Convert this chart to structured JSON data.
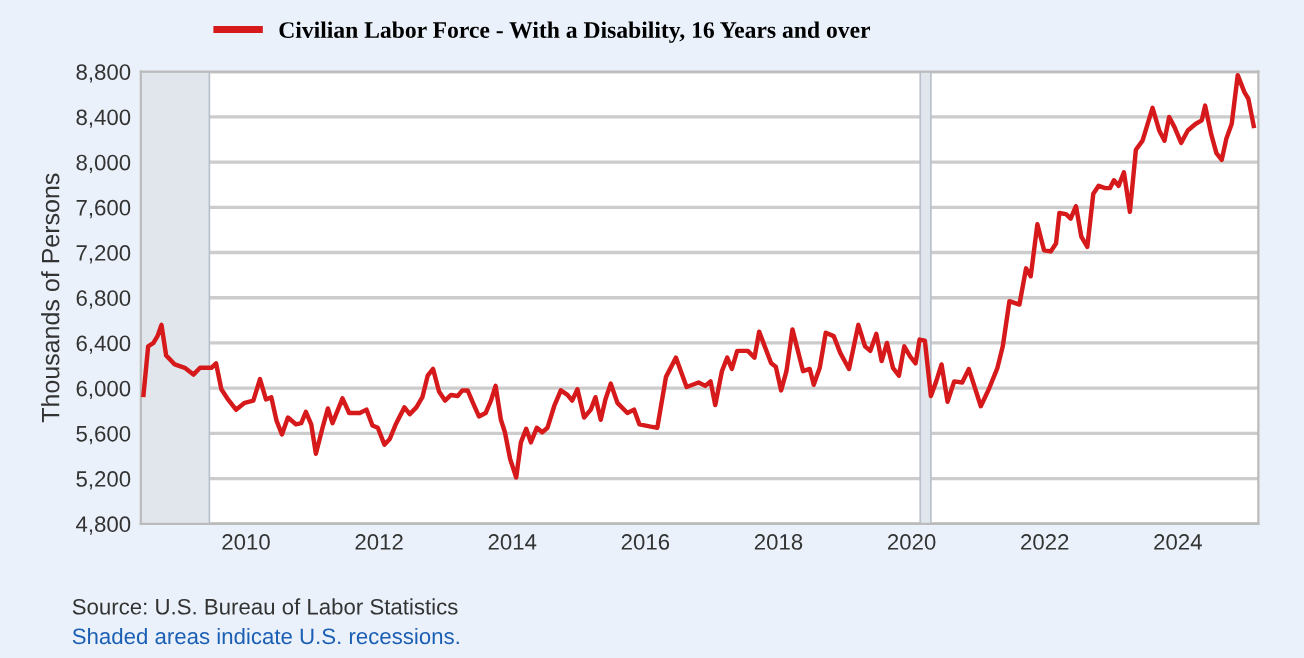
{
  "chart_data": {
    "type": "line",
    "ylabel": "Thousands of Persons",
    "x": [
      2008.46,
      2008.53,
      2008.61,
      2008.67,
      2008.73,
      2008.8,
      2008.93,
      2009.08,
      2009.21,
      2009.31,
      2009.43,
      2009.48,
      2009.55,
      2009.63,
      2009.73,
      2009.85,
      2009.98,
      2010.11,
      2010.21,
      2010.3,
      2010.38,
      2010.46,
      2010.54,
      2010.63,
      2010.75,
      2010.83,
      2010.9,
      2010.98,
      2011.05,
      2011.15,
      2011.23,
      2011.3,
      2011.45,
      2011.55,
      2011.71,
      2011.81,
      2011.9,
      2011.98,
      2012.08,
      2012.16,
      2012.25,
      2012.38,
      2012.46,
      2012.56,
      2012.65,
      2012.73,
      2012.81,
      2012.9,
      2012.99,
      2013.08,
      2013.18,
      2013.25,
      2013.33,
      2013.41,
      2013.5,
      2013.6,
      2013.68,
      2013.75,
      2013.83,
      2013.89,
      2013.97,
      2014.06,
      2014.13,
      2014.21,
      2014.28,
      2014.37,
      2014.45,
      2014.53,
      2014.63,
      2014.73,
      2014.83,
      2014.9,
      2014.98,
      2015.08,
      2015.18,
      2015.25,
      2015.33,
      2015.4,
      2015.48,
      2015.58,
      2015.73,
      2015.83,
      2015.91,
      2016.08,
      2016.18,
      2016.31,
      2016.46,
      2016.62,
      2016.8,
      2016.9,
      2016.98,
      2017.05,
      2017.15,
      2017.23,
      2017.3,
      2017.38,
      2017.54,
      2017.64,
      2017.71,
      2017.89,
      2017.96,
      2018.04,
      2018.12,
      2018.21,
      2018.37,
      2018.47,
      2018.53,
      2018.62,
      2018.71,
      2018.83,
      2018.93,
      2019.06,
      2019.2,
      2019.3,
      2019.38,
      2019.47,
      2019.55,
      2019.63,
      2019.72,
      2019.81,
      2019.89,
      2019.98,
      2020.06,
      2020.12,
      2020.2,
      2020.29,
      2020.37,
      2020.45,
      2020.54,
      2020.64,
      2020.76,
      2020.86,
      2021.04,
      2021.16,
      2021.29,
      2021.37,
      2021.47,
      2021.62,
      2021.72,
      2021.79,
      2021.89,
      2021.99,
      2022.09,
      2022.17,
      2022.22,
      2022.32,
      2022.39,
      2022.47,
      2022.55,
      2022.64,
      2022.73,
      2022.81,
      2022.91,
      2022.98,
      2023.04,
      2023.11,
      2023.19,
      2023.28,
      2023.37,
      2023.47,
      2023.62,
      2023.72,
      2023.8,
      2023.87,
      2023.95,
      2024.05,
      2024.15,
      2024.27,
      2024.36,
      2024.41,
      2024.5,
      2024.58,
      2024.66,
      2024.73,
      2024.81,
      2024.9,
      2025.0,
      2025.06,
      2025.14
    ],
    "series": [
      {
        "name": "Civilian Labor Force - With a Disability, 16 Years and over",
        "color": "#d6191b",
        "values": [
          5940,
          6370,
          6400,
          6460,
          6560,
          6290,
          6210,
          6180,
          6120,
          6180,
          6180,
          6180,
          6220,
          5990,
          5900,
          5810,
          5870,
          5890,
          6080,
          5900,
          5920,
          5710,
          5590,
          5740,
          5680,
          5690,
          5790,
          5680,
          5420,
          5650,
          5820,
          5690,
          5910,
          5780,
          5780,
          5810,
          5670,
          5650,
          5500,
          5550,
          5680,
          5830,
          5770,
          5830,
          5920,
          6110,
          6170,
          5970,
          5890,
          5940,
          5930,
          5980,
          5980,
          5870,
          5750,
          5780,
          5890,
          6020,
          5720,
          5610,
          5370,
          5210,
          5520,
          5640,
          5520,
          5650,
          5610,
          5650,
          5840,
          5980,
          5940,
          5890,
          5990,
          5740,
          5810,
          5920,
          5720,
          5900,
          6040,
          5870,
          5780,
          5810,
          5680,
          5660,
          5650,
          6100,
          6270,
          6010,
          6050,
          6020,
          6060,
          5850,
          6150,
          6270,
          6170,
          6330,
          6330,
          6270,
          6500,
          6220,
          6190,
          5980,
          6150,
          6520,
          6150,
          6170,
          6030,
          6180,
          6490,
          6460,
          6310,
          6170,
          6560,
          6370,
          6330,
          6480,
          6240,
          6400,
          6180,
          6110,
          6370,
          6280,
          6220,
          6430,
          6420,
          5930,
          6060,
          6210,
          5880,
          6060,
          6050,
          6170,
          5840,
          5990,
          6180,
          6370,
          6770,
          6740,
          7060,
          6990,
          7450,
          7220,
          7210,
          7280,
          7550,
          7540,
          7500,
          7610,
          7340,
          7250,
          7720,
          7790,
          7770,
          7770,
          7840,
          7790,
          7910,
          7560,
          8110,
          8190,
          8480,
          8280,
          8190,
          8400,
          8310,
          8170,
          8280,
          8340,
          8370,
          8500,
          8250,
          8080,
          8020,
          8210,
          8340,
          8770,
          8620,
          8560,
          8320
        ]
      }
    ],
    "xlim": [
      2008.42,
      2025.21
    ],
    "xticks": [
      2010,
      2012,
      2014,
      2016,
      2018,
      2020,
      2022,
      2024
    ],
    "ylim": [
      4800,
      8800
    ],
    "yticks": [
      {
        "value": 4800,
        "label": "4,800"
      },
      {
        "value": 5200,
        "label": "5,200"
      },
      {
        "value": 5600,
        "label": "5,600"
      },
      {
        "value": 6000,
        "label": "6,000"
      },
      {
        "value": 6400,
        "label": "6,400"
      },
      {
        "value": 6800,
        "label": "6,800"
      },
      {
        "value": 7200,
        "label": "7,200"
      },
      {
        "value": 7600,
        "label": "7,600"
      },
      {
        "value": 8000,
        "label": "8,000"
      },
      {
        "value": 8400,
        "label": "8,400"
      },
      {
        "value": 8800,
        "label": "8,800"
      }
    ],
    "bands": [
      {
        "axis": "x",
        "from": 2008.42,
        "to": 2009.45,
        "color": "#e1e5ec"
      },
      {
        "axis": "x",
        "from": 2020.13,
        "to": 2020.29,
        "color": "#e1e5ec"
      }
    ],
    "grid": "y",
    "legend": "top left",
    "line_style": "solid",
    "marker": "none",
    "annotations": [
      "Source: U.S. Bureau of Labor Statistics",
      "Shaded areas indicate U.S. recessions."
    ]
  }
}
